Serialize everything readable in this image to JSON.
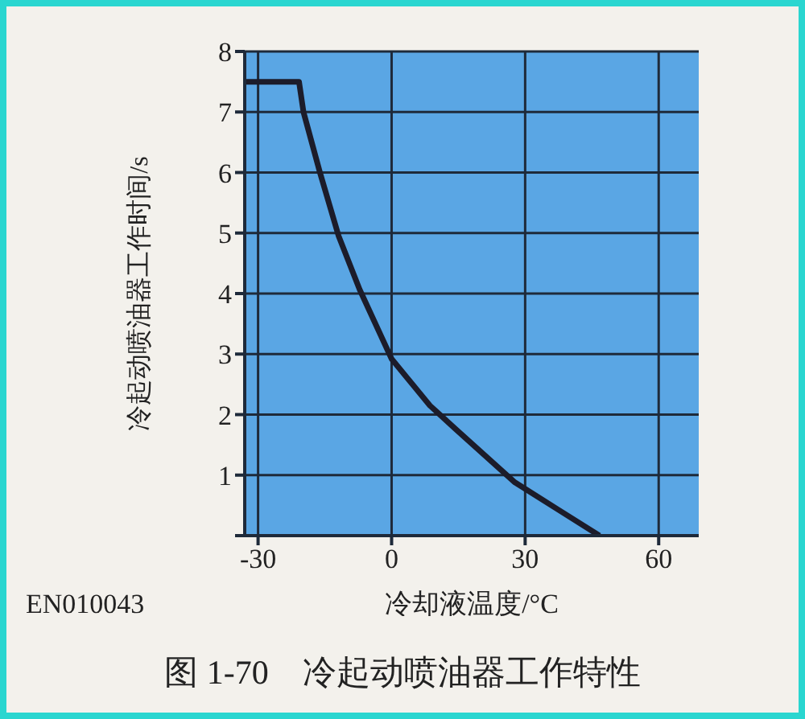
{
  "chart_data": {
    "type": "line",
    "title": "图 1-70　冷起动喷油器工作特性",
    "xlabel": "冷却液温度/°C",
    "ylabel": "冷起动喷油器工作时间/s",
    "annotations": [
      "EN010043"
    ],
    "x": [
      -33,
      -20.8,
      -19.8,
      -16.1,
      -11.9,
      -7.2,
      0,
      8.6,
      14.4,
      27.7,
      37.4,
      46.7
    ],
    "series": [
      {
        "color": "#1c1c2a",
        "values": [
          7.5,
          7.5,
          7.0,
          6.0,
          4.95,
          4.07,
          2.92,
          2.15,
          1.76,
          0.88,
          0.43,
          0
        ]
      }
    ],
    "xlim": [
      -33,
      69
    ],
    "xticks": [
      -30,
      0,
      30,
      60
    ],
    "ylim": [
      0,
      8
    ],
    "yticks": [
      {
        "value": 0,
        "label": null
      },
      1,
      2,
      3,
      4,
      5,
      6,
      7,
      8
    ],
    "grid": true,
    "legend": false,
    "marker": "none",
    "line_style": "solid"
  }
}
